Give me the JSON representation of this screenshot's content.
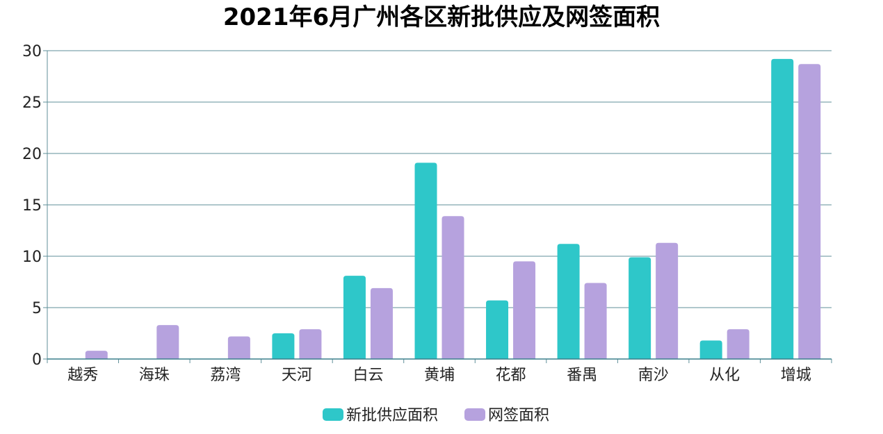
{
  "chart_data": {
    "type": "bar",
    "title": "2021年6月广州各区新批供应及网签面积",
    "xlabel": "",
    "ylabel": "",
    "ylim": [
      0,
      30
    ],
    "yticks": [
      0,
      5,
      10,
      15,
      20,
      25,
      30
    ],
    "grid": true,
    "legend_position": "bottom",
    "categories": [
      "越秀",
      "海珠",
      "荔湾",
      "天河",
      "白云",
      "黄埔",
      "花都",
      "番禺",
      "南沙",
      "从化",
      "增城"
    ],
    "series": [
      {
        "name": "新批供应面积",
        "color": "#2ec7c9",
        "values": [
          0,
          0,
          0,
          2.5,
          8.1,
          19.1,
          5.7,
          11.2,
          9.9,
          1.8,
          29.2
        ]
      },
      {
        "name": "网签面积",
        "color": "#b6a2de",
        "values": [
          0.8,
          3.3,
          2.2,
          2.9,
          6.9,
          13.9,
          9.5,
          7.4,
          11.3,
          2.9,
          28.7
        ]
      }
    ]
  }
}
